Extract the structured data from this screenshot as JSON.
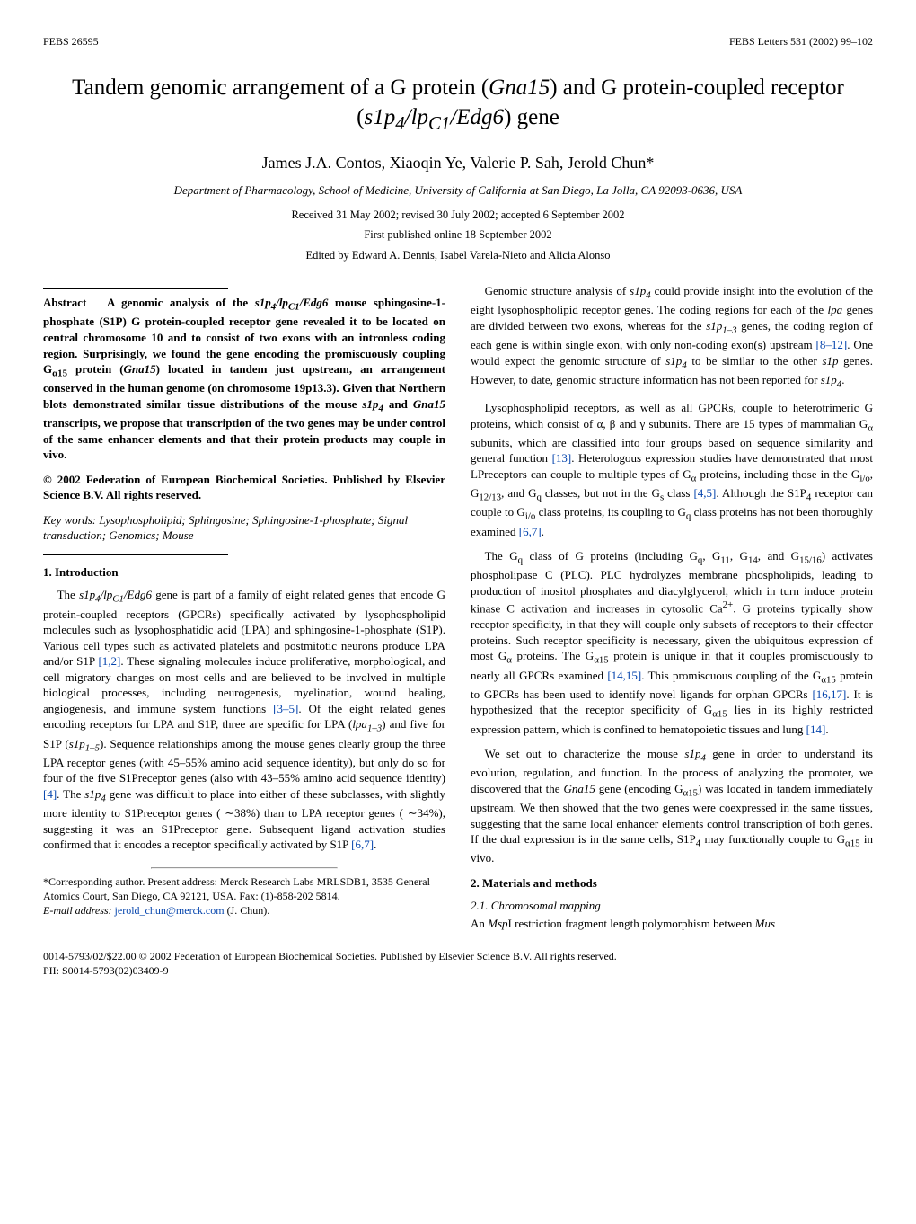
{
  "topbar": {
    "left": "FEBS 26595",
    "right": "FEBS Letters 531 (2002) 99–102"
  },
  "title_html": "Tandem genomic arrangement of a G protein (<span class='gene'>Gna15</span>) and G protein-coupled receptor (<span class='gene'>s1p<sub>4</sub>/lp<sub>C1</sub>/Edg6</span>) gene",
  "authors": "James J.A. Contos, Xiaoqin Ye, Valerie P. Sah, Jerold Chun*",
  "affiliation": "Department of Pharmacology, School of Medicine, University of California at San Diego, La Jolla, CA 92093-0636, USA",
  "dates": "Received 31 May 2002; revised 30 July 2002; accepted 6 September 2002",
  "firstpub": "First published online 18 September 2002",
  "edited": "Edited by Edward A. Dennis, Isabel Varela-Nieto and Alicia Alonso",
  "abstract": {
    "label": "Abstract",
    "body_html": "A genomic analysis of the <span class='gene'>s1p<sub>4</sub>/lp<sub>C1</sub>/Edg6</span> mouse sphingosine-1-phosphate (S1P) G protein-coupled receptor gene revealed it to be located on central chromosome 10 and to consist of two exons with an intronless coding region. Surprisingly, we found the gene encoding the promiscuously coupling G<sub>α15</sub> protein (<span class='gene'>Gna15</span>) located in tandem just upstream, an arrangement conserved in the human genome (on chromosome 19p13.3). Given that Northern blots demonstrated similar tissue distributions of the mouse <span class='gene'>s1p<sub>4</sub></span> and <span class='gene'>Gna15</span> transcripts, we propose that transcription of the two genes may be under control of the same enhancer elements and that their protein products may couple in vivo."
  },
  "copyright": "© 2002 Federation of European Biochemical Societies. Published by Elsevier Science B.V. All rights reserved.",
  "keywords_html": "<i>Key words:</i> Lysophospholipid; Sphingosine; Sphingosine-1-phosphate; Signal transduction; Genomics; Mouse",
  "sections": {
    "s1": {
      "heading": "1. Introduction"
    },
    "s2": {
      "heading": "2. Materials and methods"
    },
    "s21": {
      "heading": "2.1. Chromosomal mapping"
    }
  },
  "paragraphs": {
    "intro1_html": "The <span class='gene'>s1p<sub>4</sub>/lp<sub>C1</sub>/Edg6</span> gene is part of a family of eight related genes that encode G protein-coupled receptors (GPCRs) specifically activated by lysophospholipid molecules such as lysophosphatidic acid (LPA) and sphingosine-1-phosphate (S1P). Various cell types such as activated platelets and postmitotic neurons produce LPA and/or S1P <span class='ref'>[1,2]</span>. These signaling molecules induce proliferative, morphological, and cell migratory changes on most cells and are believed to be involved in multiple biological processes, including neurogenesis, myelination, wound healing, angiogenesis, and immune system functions <span class='ref'>[3–5]</span>. Of the eight related genes encoding receptors for LPA and S1P, three are specific for LPA (<span class='gene'>lpa<sub>1–3</sub></span>) and five for S1P (<span class='gene'>s1p<sub>1–5</sub></span>). Sequence relationships among the mouse genes clearly group the three LPA receptor genes (with 45–55% amino acid sequence identity), but only do so for four of the five S1Preceptor genes (also with 43–55% amino acid sequence identity) <span class='ref'>[4]</span>. The <span class='gene'>s1p<sub>4</sub></span> gene was difficult to place into either of these subclasses, with slightly more identity to S1Preceptor genes ( ∼38%) than to LPA receptor genes ( ∼34%), suggesting it was an S1Preceptor gene. Subsequent ligand activation studies confirmed that it encodes a receptor specifically activated by S1P <span class='ref'>[6,7]</span>.",
    "right1_html": "Genomic structure analysis of <span class='gene'>s1p<sub>4</sub></span> could provide insight into the evolution of the eight lysophospholipid receptor genes. The coding regions for each of the <span class='gene'>lpa</span> genes are divided between two exons, whereas for the <span class='gene'>s1p<sub>1–3</sub></span> genes, the coding region of each gene is within single exon, with only non-coding exon(s) upstream <span class='ref'>[8–12]</span>. One would expect the genomic structure of <span class='gene'>s1p<sub>4</sub></span> to be similar to the other <span class='gene'>s1p</span> genes. However, to date, genomic structure information has not been reported for <span class='gene'>s1p<sub>4</sub></span>.",
    "right2_html": "Lysophospholipid receptors, as well as all GPCRs, couple to heterotrimeric G proteins, which consist of α, β and γ subunits. There are 15 types of mammalian G<sub>α</sub> subunits, which are classified into four groups based on sequence similarity and general function <span class='ref'>[13]</span>. Heterologous expression studies have demonstrated that most LPreceptors can couple to multiple types of G<sub>α</sub> proteins, including those in the G<sub>i/o</sub>, G<sub>12/13</sub>, and G<sub>q</sub> classes, but not in the G<sub>s</sub> class <span class='ref'>[4,5]</span>. Although the S1P<sub>4</sub> receptor can couple to G<sub>i/o</sub> class proteins, its coupling to G<sub>q</sub> class proteins has not been thoroughly examined <span class='ref'>[6,7]</span>.",
    "right3_html": "The G<sub>q</sub> class of G proteins (including G<sub>q</sub>, G<sub>11</sub>, G<sub>14</sub>, and G<sub>15/16</sub>) activates phospholipase C (PLC). PLC hydrolyzes membrane phospholipids, leading to production of inositol phosphates and diacylglycerol, which in turn induce protein kinase C activation and increases in cytosolic Ca<sup>2+</sup>. G proteins typically show receptor specificity, in that they will couple only subsets of receptors to their effector proteins. Such receptor specificity is necessary, given the ubiquitous expression of most G<sub>α</sub> proteins. The G<sub>α15</sub> protein is unique in that it couples promiscuously to nearly all GPCRs examined <span class='ref'>[14,15]</span>. This promiscuous coupling of the G<sub>α15</sub> protein to GPCRs has been used to identify novel ligands for orphan GPCRs <span class='ref'>[16,17]</span>. It is hypothesized that the receptor specificity of G<sub>α15</sub> lies in its highly restricted expression pattern, which is confined to hematopoietic tissues and lung <span class='ref'>[14]</span>.",
    "right4_html": "We set out to characterize the mouse <span class='gene'>s1p<sub>4</sub></span> gene in order to understand its evolution, regulation, and function. In the process of analyzing the promoter, we discovered that the <span class='gene'>Gna15</span> gene (encoding G<sub>α15</sub>) was located in tandem immediately upstream. We then showed that the two genes were coexpressed in the same tissues, suggesting that the same local enhancer elements control transcription of both genes. If the dual expression is in the same cells, S1P<sub>4</sub> may functionally couple to G<sub>α15</sub> in vivo.",
    "methods1_html": "An <i>Msp</i>I restriction fragment length polymorphism between <i>Mus</i>"
  },
  "footnote": {
    "line1": "*Corresponding author. Present address: Merck Research Labs MRLSDB1, 3535 General Atomics Court, San Diego, CA 92121, USA. Fax: (1)-858-202 5814.",
    "line2_html": "<i>E-mail address:</i> <span class='email'>jerold_chun@merck.com</span> (J. Chun)."
  },
  "bottom": {
    "line1": "0014-5793/02/$22.00 © 2002 Federation of European Biochemical Societies. Published by Elsevier Science B.V. All rights reserved.",
    "line2": "PII: S0014-5793(02)03409-9"
  }
}
